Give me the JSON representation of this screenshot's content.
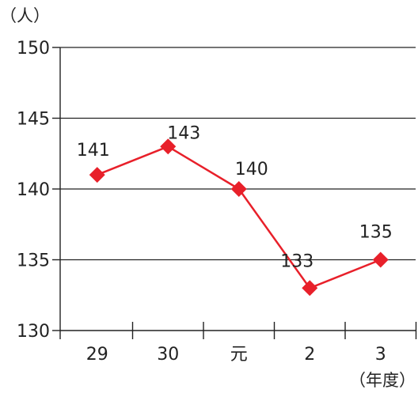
{
  "colors": {
    "series": "#e8202a",
    "axis": "#222222",
    "grid": "#222222",
    "text": "#222222"
  },
  "chart_data": {
    "type": "line",
    "ylabel": "（人）",
    "xlabel": "（年度）",
    "categories": [
      "29",
      "30",
      "元",
      "2",
      "3"
    ],
    "y_ticks": [
      "130",
      "135",
      "140",
      "145",
      "150"
    ],
    "ylim": [
      130,
      150
    ],
    "grid": true,
    "marker": "diamond",
    "series": [
      {
        "values": [
          141,
          143,
          140,
          133,
          135
        ],
        "labels": [
          "141",
          "143",
          "140",
          "133",
          "135"
        ]
      }
    ]
  }
}
